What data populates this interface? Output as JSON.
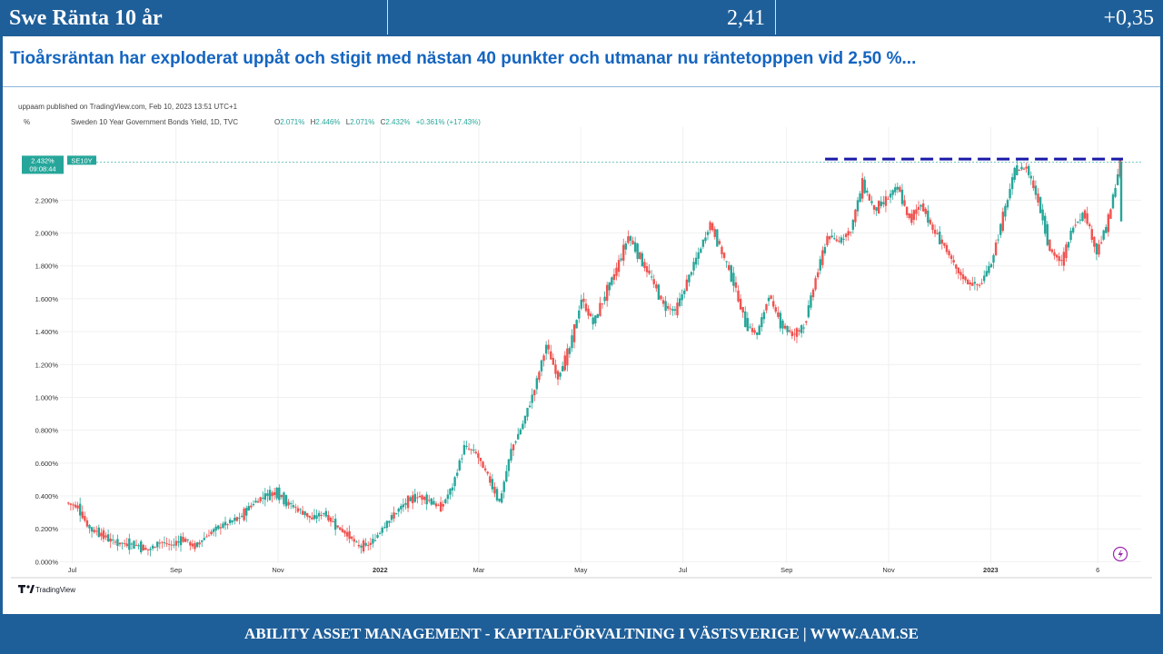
{
  "header": {
    "title": "Swe Ränta 10 år",
    "value": "2,41",
    "change": "+0,35"
  },
  "headline": "Tioårsräntan har  exploderat uppåt och stigit med nästan 40 punkter och utmanar nu räntetopppen vid 2,50 %...",
  "footer": "ABILITY ASSET MANAGEMENT -  KAPITALFÖRVALTNING I VÄSTSVERIGE   |   WWW.AAM.SE",
  "chart_data": {
    "type": "candlestick",
    "published": "uppaam published on TradingView.com, Feb 10, 2023 13:51 UTC+1",
    "unit": "%",
    "symbol_desc": "Sweden 10 Year Government Bonds Yield, 1D, TVC",
    "ohlc": {
      "o_label": "O",
      "o": "2.071%",
      "h_label": "H",
      "h": "2.446%",
      "l_label": "L",
      "l": "2.071%",
      "c_label": "C",
      "c": "2.432%",
      "change": "+0.361% (+17.43%)"
    },
    "price_label": "2.432%",
    "countdown": "09:08:44",
    "ticker": "SE10Y",
    "ylim": [
      -0.02,
      2.6
    ],
    "y_ticks": [
      "0.000%",
      "0.200%",
      "0.400%",
      "0.600%",
      "0.800%",
      "1.000%",
      "1.200%",
      "1.400%",
      "1.600%",
      "1.800%",
      "2.000%",
      "2.200%"
    ],
    "x_ticks": [
      "Jul",
      "Sep",
      "Nov",
      "2022",
      "Mar",
      "May",
      "Jul",
      "Sep",
      "Nov",
      "2023",
      "6"
    ],
    "resistance_level": 2.45,
    "brand": "TradingView",
    "colors": {
      "up": "#26a69a",
      "down": "#ef5350",
      "resistance": "#1a1aa8",
      "accent": "#1f5f99"
    },
    "series": [
      {
        "date": "2021-06-28",
        "close": 0.36
      },
      {
        "date": "2021-07-05",
        "close": 0.33
      },
      {
        "date": "2021-07-12",
        "close": 0.2
      },
      {
        "date": "2021-07-19",
        "close": 0.17
      },
      {
        "date": "2021-07-26",
        "close": 0.12
      },
      {
        "date": "2021-08-02",
        "close": 0.11
      },
      {
        "date": "2021-08-09",
        "close": 0.1
      },
      {
        "date": "2021-08-16",
        "close": 0.07
      },
      {
        "date": "2021-08-23",
        "close": 0.12
      },
      {
        "date": "2021-08-30",
        "close": 0.1
      },
      {
        "date": "2021-09-06",
        "close": 0.14
      },
      {
        "date": "2021-09-13",
        "close": 0.09
      },
      {
        "date": "2021-09-20",
        "close": 0.16
      },
      {
        "date": "2021-09-27",
        "close": 0.21
      },
      {
        "date": "2021-10-04",
        "close": 0.24
      },
      {
        "date": "2021-10-11",
        "close": 0.28
      },
      {
        "date": "2021-10-18",
        "close": 0.36
      },
      {
        "date": "2021-10-25",
        "close": 0.4
      },
      {
        "date": "2021-11-01",
        "close": 0.42
      },
      {
        "date": "2021-11-08",
        "close": 0.35
      },
      {
        "date": "2021-11-15",
        "close": 0.31
      },
      {
        "date": "2021-11-22",
        "close": 0.26
      },
      {
        "date": "2021-11-29",
        "close": 0.3
      },
      {
        "date": "2021-12-06",
        "close": 0.22
      },
      {
        "date": "2021-12-13",
        "close": 0.17
      },
      {
        "date": "2021-12-20",
        "close": 0.09
      },
      {
        "date": "2021-12-27",
        "close": 0.11
      },
      {
        "date": "2022-01-03",
        "close": 0.2
      },
      {
        "date": "2022-01-10",
        "close": 0.29
      },
      {
        "date": "2022-01-17",
        "close": 0.36
      },
      {
        "date": "2022-01-24",
        "close": 0.4
      },
      {
        "date": "2022-01-31",
        "close": 0.37
      },
      {
        "date": "2022-02-07",
        "close": 0.33
      },
      {
        "date": "2022-02-14",
        "close": 0.46
      },
      {
        "date": "2022-02-21",
        "close": 0.7
      },
      {
        "date": "2022-02-28",
        "close": 0.66
      },
      {
        "date": "2022-03-07",
        "close": 0.52
      },
      {
        "date": "2022-03-14",
        "close": 0.36
      },
      {
        "date": "2022-03-21",
        "close": 0.68
      },
      {
        "date": "2022-03-28",
        "close": 0.84
      },
      {
        "date": "2022-04-04",
        "close": 1.05
      },
      {
        "date": "2022-04-11",
        "close": 1.32
      },
      {
        "date": "2022-04-18",
        "close": 1.12
      },
      {
        "date": "2022-04-25",
        "close": 1.3
      },
      {
        "date": "2022-05-02",
        "close": 1.6
      },
      {
        "date": "2022-05-09",
        "close": 1.45
      },
      {
        "date": "2022-05-16",
        "close": 1.62
      },
      {
        "date": "2022-05-23",
        "close": 1.78
      },
      {
        "date": "2022-05-30",
        "close": 1.98
      },
      {
        "date": "2022-06-06",
        "close": 1.85
      },
      {
        "date": "2022-06-13",
        "close": 1.72
      },
      {
        "date": "2022-06-20",
        "close": 1.56
      },
      {
        "date": "2022-06-27",
        "close": 1.52
      },
      {
        "date": "2022-07-04",
        "close": 1.7
      },
      {
        "date": "2022-07-11",
        "close": 1.88
      },
      {
        "date": "2022-07-18",
        "close": 2.06
      },
      {
        "date": "2022-07-25",
        "close": 1.88
      },
      {
        "date": "2022-08-01",
        "close": 1.7
      },
      {
        "date": "2022-08-08",
        "close": 1.45
      },
      {
        "date": "2022-08-15",
        "close": 1.38
      },
      {
        "date": "2022-08-22",
        "close": 1.62
      },
      {
        "date": "2022-08-29",
        "close": 1.45
      },
      {
        "date": "2022-09-05",
        "close": 1.38
      },
      {
        "date": "2022-09-12",
        "close": 1.43
      },
      {
        "date": "2022-09-19",
        "close": 1.72
      },
      {
        "date": "2022-09-26",
        "close": 1.98
      },
      {
        "date": "2022-10-03",
        "close": 1.95
      },
      {
        "date": "2022-10-10",
        "close": 2.02
      },
      {
        "date": "2022-10-17",
        "close": 2.3
      },
      {
        "date": "2022-10-24",
        "close": 2.14
      },
      {
        "date": "2022-10-31",
        "close": 2.2
      },
      {
        "date": "2022-11-07",
        "close": 2.28
      },
      {
        "date": "2022-11-14",
        "close": 2.08
      },
      {
        "date": "2022-11-21",
        "close": 2.18
      },
      {
        "date": "2022-11-28",
        "close": 2.02
      },
      {
        "date": "2022-12-05",
        "close": 1.92
      },
      {
        "date": "2022-12-12",
        "close": 1.78
      },
      {
        "date": "2022-12-19",
        "close": 1.7
      },
      {
        "date": "2022-12-26",
        "close": 1.68
      },
      {
        "date": "2023-01-02",
        "close": 1.82
      },
      {
        "date": "2023-01-09",
        "close": 2.1
      },
      {
        "date": "2023-01-16",
        "close": 2.38
      },
      {
        "date": "2023-01-23",
        "close": 2.4
      },
      {
        "date": "2023-01-30",
        "close": 2.2
      },
      {
        "date": "2023-02-06",
        "close": 1.9
      },
      {
        "date": "2023-02-13",
        "close": 1.82
      },
      {
        "date": "2023-02-20",
        "close": 2.05
      },
      {
        "date": "2023-02-27",
        "close": 2.12
      },
      {
        "date": "2023-03-06",
        "close": 1.88
      },
      {
        "date": "2023-03-13",
        "close": 2.08
      },
      {
        "date": "2023-03-20",
        "close": 2.432
      }
    ]
  }
}
